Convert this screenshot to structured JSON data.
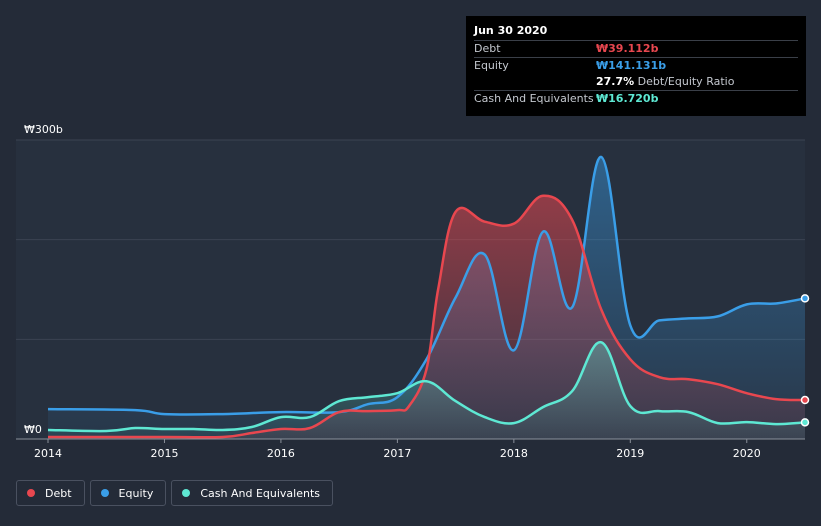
{
  "chart_data": {
    "type": "area",
    "y_axis": {
      "top_label": "₩300b",
      "bottom_label": "₩0",
      "ylim": [
        0,
        300
      ],
      "unit": "₩b"
    },
    "x_axis": {
      "ticks": [
        "2014",
        "2015",
        "2016",
        "2017",
        "2018",
        "2019",
        "2020"
      ],
      "xlim": [
        2014,
        2020.5
      ]
    },
    "grid": true,
    "series": [
      {
        "name": "Debt",
        "key": "debt",
        "color": "#e8474f",
        "points": [
          [
            2014,
            2
          ],
          [
            2015,
            2
          ],
          [
            2015.5,
            2
          ],
          [
            2015.75,
            6
          ],
          [
            2016,
            10
          ],
          [
            2016.25,
            11
          ],
          [
            2016.5,
            27
          ],
          [
            2016.75,
            28
          ],
          [
            2017,
            29
          ],
          [
            2017.1,
            33
          ],
          [
            2017.25,
            70
          ],
          [
            2017.35,
            150
          ],
          [
            2017.5,
            228
          ],
          [
            2017.75,
            218
          ],
          [
            2018,
            216
          ],
          [
            2018.25,
            244
          ],
          [
            2018.5,
            220
          ],
          [
            2018.75,
            130
          ],
          [
            2019,
            80
          ],
          [
            2019.25,
            62
          ],
          [
            2019.5,
            60
          ],
          [
            2019.75,
            55
          ],
          [
            2020,
            46
          ],
          [
            2020.25,
            40
          ],
          [
            2020.5,
            39.1
          ]
        ]
      },
      {
        "name": "Equity",
        "key": "equity",
        "color": "#3a9ee8",
        "points": [
          [
            2014,
            30
          ],
          [
            2014.75,
            29
          ],
          [
            2015,
            25
          ],
          [
            2015.5,
            25
          ],
          [
            2016,
            27
          ],
          [
            2016.5,
            27
          ],
          [
            2016.75,
            35
          ],
          [
            2017,
            42
          ],
          [
            2017.25,
            80
          ],
          [
            2017.5,
            142
          ],
          [
            2017.75,
            185
          ],
          [
            2018,
            89
          ],
          [
            2018.25,
            208
          ],
          [
            2018.5,
            132
          ],
          [
            2018.75,
            283
          ],
          [
            2019,
            114
          ],
          [
            2019.25,
            119
          ],
          [
            2019.5,
            121
          ],
          [
            2019.75,
            123
          ],
          [
            2020,
            135
          ],
          [
            2020.25,
            136
          ],
          [
            2020.5,
            141.1
          ]
        ]
      },
      {
        "name": "Cash And Equivalents",
        "key": "cash",
        "color": "#5ee8d3",
        "points": [
          [
            2014,
            9
          ],
          [
            2014.5,
            8
          ],
          [
            2014.75,
            11
          ],
          [
            2015,
            10
          ],
          [
            2015.25,
            10
          ],
          [
            2015.5,
            9
          ],
          [
            2015.75,
            12
          ],
          [
            2016,
            22
          ],
          [
            2016.25,
            22
          ],
          [
            2016.5,
            38
          ],
          [
            2016.75,
            42
          ],
          [
            2017,
            46
          ],
          [
            2017.25,
            58
          ],
          [
            2017.5,
            38
          ],
          [
            2017.75,
            22
          ],
          [
            2018,
            16
          ],
          [
            2018.25,
            32
          ],
          [
            2018.5,
            48
          ],
          [
            2018.75,
            97
          ],
          [
            2019,
            33
          ],
          [
            2019.25,
            28
          ],
          [
            2019.5,
            27
          ],
          [
            2019.75,
            16
          ],
          [
            2020,
            17
          ],
          [
            2020.25,
            15
          ],
          [
            2020.5,
            16.7
          ]
        ]
      }
    ]
  },
  "tooltip": {
    "date": "Jun 30 2020",
    "debt_label": "Debt",
    "debt_value": "₩39.112b",
    "equity_label": "Equity",
    "equity_value": "₩141.131b",
    "ratio_value": "27.7%",
    "ratio_label": "Debt/Equity Ratio",
    "cash_label": "Cash And Equivalents",
    "cash_value": "₩16.720b"
  },
  "legend": [
    {
      "label": "Debt",
      "color": "#e8474f"
    },
    {
      "label": "Equity",
      "color": "#3a9ee8"
    },
    {
      "label": "Cash And Equivalents",
      "color": "#5ee8d3"
    }
  ]
}
